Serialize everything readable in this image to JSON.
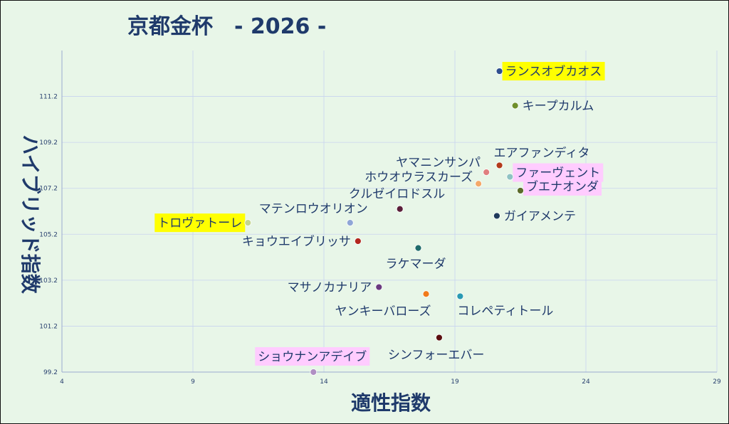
{
  "chart_data": {
    "type": "scatter",
    "title": "京都金杯　- 2026 -",
    "xlabel": "適性指数",
    "ylabel": "ハイブリッド指数",
    "xlim": [
      4,
      29
    ],
    "ylim": [
      99.2,
      113.2
    ],
    "xticks": [
      4,
      9,
      14,
      19,
      24,
      29
    ],
    "yticks": [
      99.2,
      101.2,
      103.2,
      105.2,
      107.2,
      109.2,
      111.2
    ],
    "grid": true,
    "points": [
      {
        "name": "ランスオブカオス",
        "x": 20.7,
        "y": 112.3,
        "color": "#2e4f8e",
        "highlight": "#ffff00"
      },
      {
        "name": "キープカルム",
        "x": 21.3,
        "y": 110.8,
        "color": "#6e8f2a",
        "highlight": null
      },
      {
        "name": "エアファンディタ",
        "x": 20.7,
        "y": 108.2,
        "color": "#b33a1a",
        "highlight": null
      },
      {
        "name": "ヤマニンサンパ",
        "x": 20.2,
        "y": 107.9,
        "color": "#e07f7f",
        "highlight": null
      },
      {
        "name": "ファーヴェント",
        "x": 21.1,
        "y": 107.7,
        "color": "#8fc3c3",
        "highlight": "#ffccff"
      },
      {
        "name": "ホウオウラスカーズ",
        "x": 19.9,
        "y": 107.4,
        "color": "#f4a96a",
        "highlight": null
      },
      {
        "name": "ブエナオンダ",
        "x": 21.5,
        "y": 107.1,
        "color": "#5b6b2a",
        "highlight": "#ffccff"
      },
      {
        "name": "クルゼイロドスル",
        "x": 16.9,
        "y": 106.3,
        "color": "#5b1f3a",
        "highlight": null
      },
      {
        "name": "ガイアメンテ",
        "x": 20.6,
        "y": 106.0,
        "color": "#1f3a5b",
        "highlight": null
      },
      {
        "name": "マテンロウオリオン",
        "x": 15.0,
        "y": 105.7,
        "color": "#8fa6d6",
        "highlight": null
      },
      {
        "name": "トロヴァトーレ",
        "x": 11.1,
        "y": 105.7,
        "color": "#c3d68f",
        "highlight": "#ffff00"
      },
      {
        "name": "キョウエイブリッサ",
        "x": 15.3,
        "y": 104.9,
        "color": "#b3261e",
        "highlight": null
      },
      {
        "name": "ラケマーダ",
        "x": 17.6,
        "y": 104.6,
        "color": "#1f6b6b",
        "highlight": null
      },
      {
        "name": "マサノカナリア",
        "x": 16.1,
        "y": 102.9,
        "color": "#6b3a7f",
        "highlight": null
      },
      {
        "name": "ヤンキーバローズ",
        "x": 17.9,
        "y": 102.6,
        "color": "#f07a1a",
        "highlight": null
      },
      {
        "name": "コレペティトール",
        "x": 19.2,
        "y": 102.5,
        "color": "#2a9ab3",
        "highlight": null
      },
      {
        "name": "シンフォーエバー",
        "x": 18.4,
        "y": 100.7,
        "color": "#5b0f0f",
        "highlight": null
      },
      {
        "name": "ショウナンアデイブ",
        "x": 13.6,
        "y": 99.2,
        "color": "#b08fc3",
        "highlight": "#ffccff"
      }
    ]
  }
}
